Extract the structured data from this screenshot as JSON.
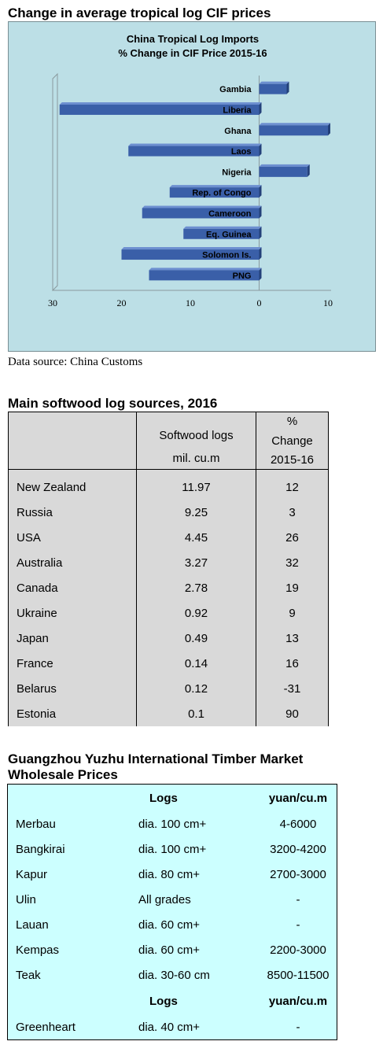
{
  "section1": {
    "title": "Change in average tropical log CIF prices"
  },
  "chart_data": {
    "type": "bar",
    "orientation": "horizontal",
    "title": "China Tropical Log Imports",
    "subtitle": "% Change in CIF Price 2015-16",
    "categories": [
      "Gambia",
      "Liberia",
      "Ghana",
      "Laos",
      "Nigeria",
      "Rep. of Congo",
      "Cameroon",
      "Eq. Guinea",
      "Solomon Is.",
      "PNG"
    ],
    "values": [
      4,
      -29,
      10,
      -19,
      7,
      -13,
      -17,
      -11,
      -20,
      -16
    ],
    "xlim": [
      -30,
      10
    ],
    "xticks": [
      "30",
      "20",
      "10",
      "0",
      "10"
    ],
    "xlabel": "",
    "ylabel": "",
    "grid": false,
    "legend": "none",
    "bar_color": "#3a5fa8",
    "background": "#bcdfe6"
  },
  "source": "Data source: China Customs",
  "section2": {
    "title": "Main softwood log sources, 2016",
    "headers": {
      "col2_line1": "Softwood logs",
      "col2_line2": "mil. cu.m",
      "col3_line1": "%",
      "col3_line2": "Change",
      "col3_line3": "2015-16"
    },
    "rows": [
      [
        "New Zealand",
        "11.97",
        "12"
      ],
      [
        "Russia",
        "9.25",
        "3"
      ],
      [
        "USA",
        "4.45",
        "26"
      ],
      [
        "Australia",
        "3.27",
        "32"
      ],
      [
        "Canada",
        "2.78",
        "19"
      ],
      [
        "Ukraine",
        "0.92",
        "9"
      ],
      [
        "Japan",
        "0.49",
        "13"
      ],
      [
        "France",
        "0.14",
        "16"
      ],
      [
        "Belarus",
        "0.12",
        "-31"
      ],
      [
        "Estonia",
        "0.1",
        "90"
      ]
    ]
  },
  "section3": {
    "title_line1": "Guangzhou Yuzhu International Timber Market",
    "title_line2": "Wholesale Prices",
    "header": {
      "logs": "Logs",
      "price": "yuan/cu.m"
    },
    "rows": [
      [
        "Merbau",
        "dia. 100 cm+",
        "4-6000"
      ],
      [
        "Bangkirai",
        "dia. 100 cm+",
        "3200-4200"
      ],
      [
        "Kapur",
        "dia. 80 cm+",
        "2700-3000"
      ],
      [
        "Ulin",
        "All grades",
        "-"
      ],
      [
        "Lauan",
        "dia. 60 cm+",
        "-"
      ],
      [
        "Kempas",
        "dia. 60 cm+",
        "2200-3000"
      ],
      [
        "Teak",
        "dia. 30-60 cm",
        "8500-11500"
      ]
    ],
    "header2": {
      "logs": "Logs",
      "price": "yuan/cu.m"
    },
    "rows2": [
      [
        "Greenheart",
        "dia. 40 cm+",
        "-"
      ]
    ]
  }
}
